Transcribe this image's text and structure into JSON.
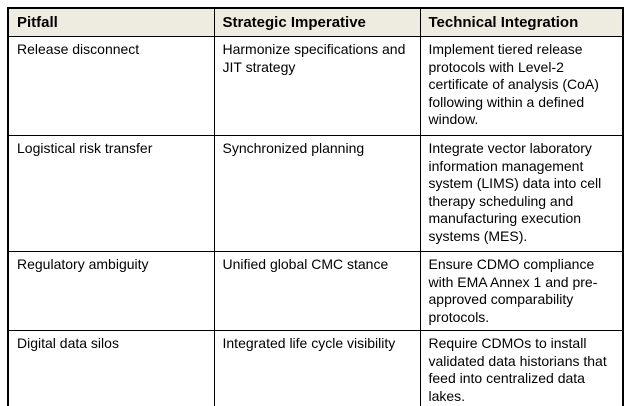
{
  "table": {
    "title": "pitfall-strategy-table",
    "columns": [
      "Pitfall",
      "Strategic Imperative",
      "Technical Integration"
    ],
    "rows": [
      {
        "pitfall": "Release disconnect",
        "imperative": "Harmonize specifications and JIT strategy",
        "integration": "Implement tiered release protocols with Level-2 certificate of analysis (CoA) following within a defined window."
      },
      {
        "pitfall": "Logistical risk transfer",
        "imperative": "Synchronized planning",
        "integration": "Integrate vector laboratory information management system (LIMS) data into cell therapy scheduling and manufacturing execution systems (MES)."
      },
      {
        "pitfall": "Regulatory ambiguity",
        "imperative": "Unified global CMC stance",
        "integration": "Ensure CDMO compliance with EMA Annex 1 and pre-approved comparability protocols."
      },
      {
        "pitfall": "Digital data silos",
        "imperative": "Integrated life cycle visibility",
        "integration": "Require CDMOs to install validated data historians that feed into centralized data lakes."
      }
    ]
  },
  "colors": {
    "header_bg": "#eeece1",
    "border": "#000000",
    "text": "#000000",
    "body_bg": "#ffffff"
  }
}
